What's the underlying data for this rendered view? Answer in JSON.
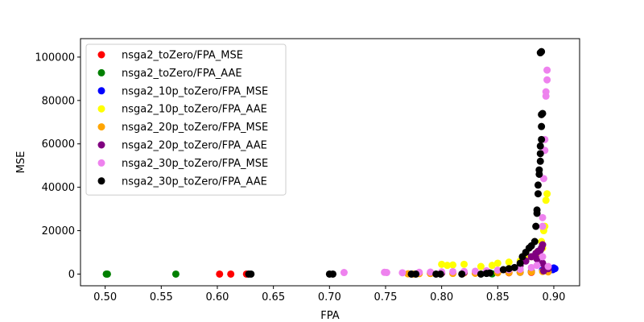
{
  "chart_data": {
    "type": "scatter",
    "title": "",
    "xlabel": "FPA",
    "ylabel": "MSE",
    "xlim": [
      0.478,
      0.923
    ],
    "ylim": [
      -5400,
      108500
    ],
    "xticks": [
      0.5,
      0.55,
      0.6,
      0.65,
      0.7,
      0.75,
      0.8,
      0.85,
      0.9
    ],
    "xtick_labels": [
      "0.50",
      "0.55",
      "0.60",
      "0.65",
      "0.70",
      "0.75",
      "0.80",
      "0.85",
      "0.90"
    ],
    "yticks": [
      0,
      20000,
      40000,
      60000,
      80000,
      100000
    ],
    "ytick_labels": [
      "0",
      "20000",
      "40000",
      "60000",
      "80000",
      "100000"
    ],
    "grid": false,
    "legend_position": "top-left",
    "series": [
      {
        "name": "nsga2_toZero/FPA_MSE",
        "color": "#ff0000",
        "points": [
          [
            0.602,
            0
          ],
          [
            0.612,
            0
          ],
          [
            0.626,
            0
          ],
          [
            0.79,
            300
          ],
          [
            0.83,
            400
          ],
          [
            0.86,
            600
          ],
          [
            0.88,
            800
          ]
        ]
      },
      {
        "name": "nsga2_toZero/FPA_AAE",
        "color": "#008000",
        "points": [
          [
            0.501,
            0
          ],
          [
            0.502,
            0
          ],
          [
            0.563,
            0
          ],
          [
            0.845,
            100
          ]
        ]
      },
      {
        "name": "nsga2_10p_toZero/FPA_MSE",
        "color": "#0000ff",
        "points": [
          [
            0.87,
            800
          ],
          [
            0.88,
            1200
          ],
          [
            0.89,
            1800
          ],
          [
            0.895,
            2200
          ],
          [
            0.9,
            2800
          ],
          [
            0.901,
            2500
          ],
          [
            0.899,
            2000
          ]
        ]
      },
      {
        "name": "nsga2_10p_toZero/FPA_AAE",
        "color": "#ffff00",
        "points": [
          [
            0.8,
            4500
          ],
          [
            0.805,
            4000
          ],
          [
            0.81,
            4200
          ],
          [
            0.82,
            4500
          ],
          [
            0.835,
            3500
          ],
          [
            0.845,
            4000
          ],
          [
            0.85,
            5000
          ],
          [
            0.86,
            5500
          ],
          [
            0.87,
            6000
          ],
          [
            0.875,
            7000
          ],
          [
            0.88,
            8000
          ],
          [
            0.885,
            10000
          ],
          [
            0.889,
            15000
          ],
          [
            0.891,
            20000
          ],
          [
            0.892,
            22000
          ],
          [
            0.893,
            34000
          ],
          [
            0.894,
            37000
          ],
          [
            0.89,
            12000
          ],
          [
            0.886,
            9000
          ]
        ]
      },
      {
        "name": "nsga2_20p_toZero/FPA_MSE",
        "color": "#ffa500",
        "points": [
          [
            0.77,
            100
          ],
          [
            0.775,
            0
          ],
          [
            0.78,
            200
          ],
          [
            0.79,
            300
          ],
          [
            0.8,
            400
          ],
          [
            0.81,
            300
          ],
          [
            0.82,
            500
          ],
          [
            0.83,
            400
          ],
          [
            0.84,
            500
          ],
          [
            0.85,
            600
          ],
          [
            0.86,
            700
          ],
          [
            0.87,
            800
          ],
          [
            0.88,
            1000
          ],
          [
            0.89,
            1200
          ],
          [
            0.895,
            1000
          ]
        ]
      },
      {
        "name": "nsga2_20p_toZero/FPA_AAE",
        "color": "#800080",
        "points": [
          [
            0.8,
            500
          ],
          [
            0.82,
            800
          ],
          [
            0.84,
            1200
          ],
          [
            0.86,
            2000
          ],
          [
            0.87,
            4000
          ],
          [
            0.875,
            6000
          ],
          [
            0.88,
            8000
          ],
          [
            0.884,
            9500
          ],
          [
            0.886,
            10500
          ],
          [
            0.889,
            12000
          ],
          [
            0.89,
            13500
          ],
          [
            0.888,
            11000
          ],
          [
            0.885,
            7000
          ],
          [
            0.89,
            5000
          ],
          [
            0.892,
            3000
          ],
          [
            0.895,
            2500
          ],
          [
            0.891,
            1500
          ]
        ]
      },
      {
        "name": "nsga2_30p_toZero/FPA_MSE",
        "color": "#ee82ee",
        "points": [
          [
            0.713,
            700
          ],
          [
            0.749,
            800
          ],
          [
            0.751,
            700
          ],
          [
            0.765,
            600
          ],
          [
            0.78,
            800
          ],
          [
            0.79,
            900
          ],
          [
            0.8,
            1000
          ],
          [
            0.81,
            1100
          ],
          [
            0.82,
            1200
          ],
          [
            0.83,
            1300
          ],
          [
            0.84,
            1500
          ],
          [
            0.85,
            1800
          ],
          [
            0.86,
            2000
          ],
          [
            0.87,
            2200
          ],
          [
            0.88,
            3000
          ],
          [
            0.885,
            4000
          ],
          [
            0.89,
            8000
          ],
          [
            0.89,
            22000
          ],
          [
            0.89,
            26000
          ],
          [
            0.891,
            44000
          ],
          [
            0.892,
            57000
          ],
          [
            0.892,
            62000
          ],
          [
            0.893,
            82000
          ],
          [
            0.893,
            84000
          ],
          [
            0.894,
            89500
          ],
          [
            0.894,
            94000
          ],
          [
            0.895,
            3500
          ]
        ]
      },
      {
        "name": "nsga2_30p_toZero/FPA_AAE",
        "color": "#000000",
        "points": [
          [
            0.628,
            0
          ],
          [
            0.63,
            0
          ],
          [
            0.7,
            0
          ],
          [
            0.703,
            0
          ],
          [
            0.773,
            0
          ],
          [
            0.777,
            0
          ],
          [
            0.795,
            0
          ],
          [
            0.799,
            0
          ],
          [
            0.818,
            0
          ],
          [
            0.835,
            0
          ],
          [
            0.84,
            300
          ],
          [
            0.843,
            500
          ],
          [
            0.855,
            2000
          ],
          [
            0.86,
            2500
          ],
          [
            0.865,
            3000
          ],
          [
            0.87,
            5000
          ],
          [
            0.872,
            8000
          ],
          [
            0.875,
            10000
          ],
          [
            0.878,
            12000
          ],
          [
            0.88,
            13000
          ],
          [
            0.883,
            15000
          ],
          [
            0.884,
            22000
          ],
          [
            0.885,
            28000
          ],
          [
            0.885,
            29500
          ],
          [
            0.886,
            37000
          ],
          [
            0.886,
            41000
          ],
          [
            0.887,
            46000
          ],
          [
            0.887,
            48000
          ],
          [
            0.888,
            52000
          ],
          [
            0.888,
            55500
          ],
          [
            0.888,
            59000
          ],
          [
            0.889,
            62000
          ],
          [
            0.889,
            68000
          ],
          [
            0.889,
            73500
          ],
          [
            0.89,
            74000
          ],
          [
            0.888,
            102000
          ],
          [
            0.889,
            102500
          ]
        ]
      }
    ]
  }
}
